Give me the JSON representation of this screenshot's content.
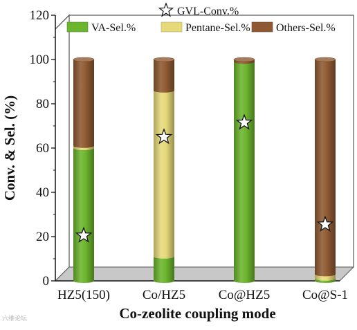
{
  "chart_data": {
    "type": "bar",
    "stacked": true,
    "render_style": "3d-cylinders",
    "categories": [
      "HZ5(150)",
      "Co/HZ5",
      "Co@HZ5",
      "Co@S-1"
    ],
    "series": [
      {
        "name": "VA-Sel.%",
        "color": "#6cb52e",
        "values": [
          60,
          11,
          99,
          1
        ]
      },
      {
        "name": "Pentane-Sel.%",
        "color": "#e6d97a",
        "values": [
          1,
          75,
          0,
          2
        ]
      },
      {
        "name": "Others-Sel.%",
        "color": "#8f5a33",
        "values": [
          39,
          14,
          1,
          97
        ]
      }
    ],
    "markers": {
      "name": "GVL-Conv.%",
      "shape": "star",
      "values": [
        20.5,
        65,
        71.5,
        25.5
      ]
    },
    "xlabel": "Co-zeolite coupling mode",
    "ylabel": "Conv. & Sel. (%)",
    "ylim": [
      0,
      120
    ],
    "yticks": [
      "0",
      "20",
      "40",
      "60",
      "80",
      "100",
      "120"
    ],
    "grid": false,
    "legend_position": "top-inside",
    "floor_color": "#c8c8c8"
  },
  "watermark": "六维论坛"
}
